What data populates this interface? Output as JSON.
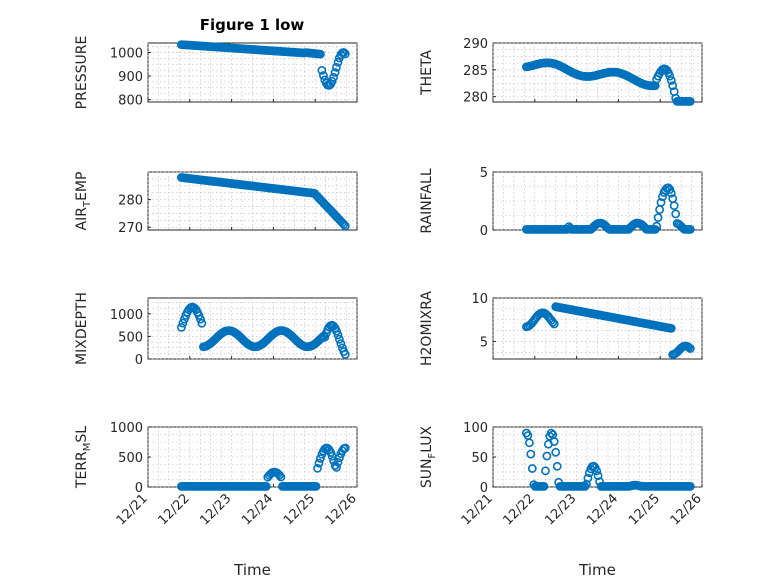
{
  "figure": {
    "title": "Figure 1 low"
  },
  "chart_data": [
    {
      "type": "scatter",
      "ylabel": "PRESSURE",
      "ylabel_sub": "",
      "ylabel_rest": "",
      "xlabel": "",
      "title": "Figure 1 low",
      "xlim": [
        "12/21",
        "12/26"
      ],
      "ylim": [
        790,
        1040
      ],
      "yticks": [
        800,
        900,
        1000
      ],
      "x_ticklabels": [],
      "series": [
        {
          "name": "",
          "x": [],
          "y": []
        }
      ],
      "color": "#0072BD",
      "grid": true
    },
    {
      "type": "scatter",
      "ylabel": "THETA",
      "ylabel_sub": "",
      "ylabel_rest": "",
      "xlabel": "",
      "title": "",
      "xlim": [
        "12/21",
        "12/26"
      ],
      "ylim": [
        279,
        290
      ],
      "yticks": [
        280,
        285,
        290
      ],
      "x_ticklabels": [],
      "series": [
        {
          "name": "",
          "x": [],
          "y": []
        }
      ],
      "color": "#0072BD",
      "grid": true
    },
    {
      "type": "scatter",
      "ylabel": "AIR",
      "ylabel_sub": "T",
      "ylabel_rest": "EMP",
      "xlabel": "",
      "title": "",
      "xlim": [
        "12/21",
        "12/26"
      ],
      "ylim": [
        269,
        290
      ],
      "yticks": [
        270,
        280
      ],
      "x_ticklabels": [],
      "series": [
        {
          "name": "",
          "x": [],
          "y": []
        }
      ],
      "color": "#0072BD",
      "grid": true
    },
    {
      "type": "scatter",
      "ylabel": "RAINFALL",
      "ylabel_sub": "",
      "ylabel_rest": "",
      "xlabel": "",
      "title": "",
      "xlim": [
        "12/21",
        "12/26"
      ],
      "ylim": [
        0,
        5
      ],
      "yticks": [
        0,
        5
      ],
      "x_ticklabels": [],
      "series": [
        {
          "name": "",
          "x": [],
          "y": []
        }
      ],
      "color": "#0072BD",
      "grid": true
    },
    {
      "type": "scatter",
      "ylabel": "MIXDEPTH",
      "ylabel_sub": "",
      "ylabel_rest": "",
      "xlabel": "",
      "title": "",
      "xlim": [
        "12/21",
        "12/26"
      ],
      "ylim": [
        0,
        1350
      ],
      "yticks": [
        0,
        500,
        1000
      ],
      "x_ticklabels": [],
      "series": [
        {
          "name": "",
          "x": [],
          "y": []
        }
      ],
      "color": "#0072BD",
      "grid": true
    },
    {
      "type": "scatter",
      "ylabel": "H2OMIXRA",
      "ylabel_sub": "",
      "ylabel_rest": "",
      "xlabel": "",
      "title": "",
      "xlim": [
        "12/21",
        "12/26"
      ],
      "ylim": [
        3,
        10
      ],
      "yticks": [
        5,
        10
      ],
      "x_ticklabels": [],
      "series": [
        {
          "name": "",
          "x": [],
          "y": []
        }
      ],
      "color": "#0072BD",
      "grid": true
    },
    {
      "type": "scatter",
      "ylabel": "TERR",
      "ylabel_sub": "M",
      "ylabel_rest": "SL",
      "xlabel": "Time",
      "title": "",
      "xlim": [
        "12/21",
        "12/26"
      ],
      "ylim": [
        0,
        1000
      ],
      "yticks": [
        0,
        500,
        1000
      ],
      "x_ticklabels": [
        "12/21",
        "12/22",
        "12/23",
        "12/24",
        "12/25",
        "12/26"
      ],
      "series": [
        {
          "name": "",
          "x": [],
          "y": []
        }
      ],
      "color": "#0072BD",
      "grid": true
    },
    {
      "type": "scatter",
      "ylabel": "SUN",
      "ylabel_sub": "F",
      "ylabel_rest": "LUX",
      "xlabel": "Time",
      "title": "",
      "xlim": [
        "12/21",
        "12/26"
      ],
      "ylim": [
        0,
        100
      ],
      "yticks": [
        0,
        50,
        100
      ],
      "x_ticklabels": [
        "12/21",
        "12/22",
        "12/23",
        "12/24",
        "12/25",
        "12/26"
      ],
      "series": [
        {
          "name": "",
          "x": [],
          "y": []
        }
      ],
      "color": "#0072BD",
      "grid": true
    }
  ]
}
